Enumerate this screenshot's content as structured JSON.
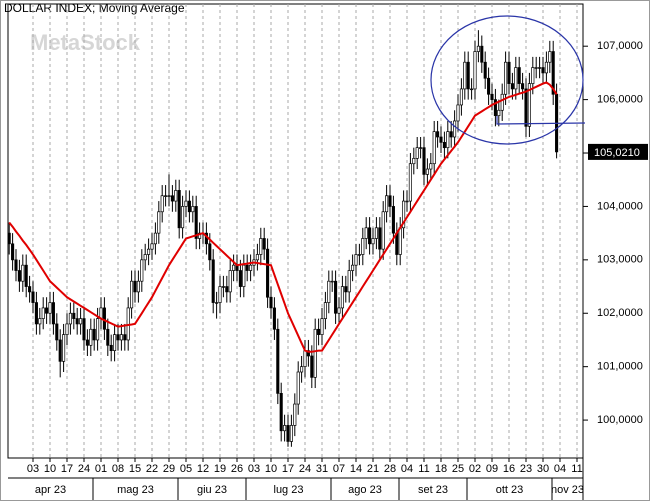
{
  "chart_data": {
    "type": "candlestick",
    "title": "DOLLAR INDEX; Moving Average",
    "watermark": "MetaStock",
    "categories": [
      null,
      null,
      null,
      null,
      null,
      null,
      null,
      "03",
      null,
      null,
      null,
      null,
      "10",
      null,
      null,
      null,
      null,
      "17",
      null,
      null,
      null,
      null,
      "24",
      null,
      null,
      null,
      null,
      "01",
      null,
      null,
      null,
      null,
      "08",
      null,
      null,
      null,
      null,
      "15",
      null,
      null,
      null,
      null,
      "22",
      null,
      null,
      null,
      null,
      "29",
      null,
      null,
      null,
      null,
      "05",
      null,
      null,
      null,
      null,
      "12",
      null,
      null,
      null,
      null,
      "19",
      null,
      null,
      null,
      null,
      "26",
      null,
      null,
      null,
      null,
      "03",
      null,
      null,
      null,
      null,
      "10",
      null,
      null,
      null,
      null,
      "17",
      null,
      null,
      null,
      null,
      "24",
      null,
      null,
      null,
      null,
      "31",
      null,
      null,
      null,
      null,
      "07",
      null,
      null,
      null,
      null,
      "14",
      null,
      null,
      null,
      null,
      "21",
      null,
      null,
      null,
      null,
      "28",
      null,
      null,
      null,
      null,
      "04",
      null,
      null,
      null,
      null,
      "11",
      null,
      null,
      null,
      null,
      "18",
      null,
      null,
      null,
      null,
      "25",
      null,
      null,
      null,
      null,
      "02",
      null,
      null,
      null,
      null,
      "09",
      null,
      null,
      null,
      null,
      "16",
      null,
      null,
      null,
      null,
      "23",
      null,
      null,
      null,
      null,
      "30",
      null,
      null,
      null,
      null,
      "04",
      null,
      null,
      null,
      null,
      "11"
    ],
    "months": [
      "apr 23",
      "mag 23",
      "giu 23",
      "lug 23",
      "ago 23",
      "set 23",
      "ott 23",
      "nov 23"
    ],
    "color": "#000000",
    "open": [
      103.5,
      103.3,
      103.0,
      102.8,
      102.6,
      102.9,
      102.5,
      102.4,
      102.2,
      101.8,
      101.9,
      102.1,
      102.0,
      102.2,
      101.8,
      101.5,
      101.1,
      101.6,
      101.8,
      102.0,
      101.9,
      101.8,
      101.9,
      101.5,
      101.4,
      101.7,
      101.5,
      101.9,
      102.1,
      101.7,
      101.4,
      101.3,
      101.6,
      101.5,
      101.6,
      101.5,
      102.1,
      102.6,
      102.4,
      102.6,
      103.0,
      103.1,
      103.2,
      103.3,
      103.5,
      103.9,
      104.2,
      104.2,
      104.2,
      104.1,
      104.3,
      103.6,
      104.0,
      104.1,
      103.9,
      104.0,
      103.4,
      103.5,
      103.5,
      103.3,
      103.0,
      102.2,
      102.2,
      102.5,
      102.5,
      102.4,
      102.8,
      102.9,
      102.8,
      102.5,
      102.9,
      102.8,
      102.9,
      103.0,
      103.1,
      103.4,
      103.2,
      102.3,
      102.1,
      101.7,
      100.5,
      99.8,
      99.9,
      99.6,
      99.9,
      100.3,
      100.9,
      101.0,
      101.3,
      101.2,
      100.8,
      101.7,
      101.6,
      101.9,
      102.2,
      102.6,
      102.6,
      102.0,
      102.1,
      102.5,
      102.4,
      102.8,
      102.9,
      103.1,
      103.1,
      103.4,
      103.6,
      103.3,
      103.4,
      103.6,
      103.2,
      103.9,
      104.2,
      104.0,
      103.5,
      103.1,
      103.6,
      104.1,
      104.1,
      104.8,
      104.9,
      105.1,
      105.1,
      104.6,
      104.7,
      104.8,
      105.4,
      105.3,
      105.2,
      105.1,
      105.4,
      105.3,
      105.6,
      105.9,
      106.2,
      106.7,
      106.2,
      106.2,
      106.9,
      107.0,
      106.7,
      106.4,
      106.1,
      106.0,
      105.7,
      105.8,
      106.1,
      106.7,
      106.3,
      106.2,
      106.6,
      106.3,
      106.2,
      105.5,
      106.3,
      106.6,
      106.6,
      106.6,
      106.5,
      106.7,
      106.9,
      106.1,
      null,
      null,
      null,
      null,
      null,
      null
    ],
    "high": [
      103.7,
      103.5,
      103.2,
      103.0,
      103.1,
      103.1,
      102.7,
      102.6,
      102.4,
      102.1,
      102.3,
      102.3,
      102.4,
      102.4,
      102.0,
      101.7,
      101.8,
      102.0,
      102.2,
      102.2,
      102.1,
      102.1,
      102.1,
      101.7,
      101.9,
      101.9,
      102.1,
      102.3,
      102.3,
      101.9,
      101.6,
      101.8,
      101.8,
      101.8,
      101.8,
      102.3,
      102.8,
      102.8,
      102.8,
      103.2,
      103.3,
      103.4,
      103.5,
      103.7,
      104.1,
      104.4,
      104.4,
      104.6,
      104.4,
      104.5,
      104.5,
      104.2,
      104.3,
      104.3,
      104.2,
      104.2,
      103.7,
      103.7,
      103.7,
      103.5,
      103.2,
      102.4,
      102.7,
      102.7,
      102.7,
      103.0,
      103.1,
      103.1,
      103.0,
      103.1,
      103.1,
      103.1,
      103.2,
      103.3,
      103.6,
      103.6,
      103.4,
      102.5,
      102.3,
      101.9,
      100.7,
      100.1,
      100.1,
      100.1,
      100.5,
      101.1,
      101.2,
      101.5,
      101.5,
      101.4,
      101.9,
      101.9,
      102.1,
      102.4,
      102.8,
      102.8,
      102.8,
      102.3,
      102.7,
      102.7,
      103.0,
      103.1,
      103.3,
      103.3,
      103.6,
      103.8,
      103.8,
      103.6,
      103.8,
      103.8,
      104.1,
      104.4,
      104.4,
      104.2,
      103.7,
      103.8,
      104.3,
      104.3,
      105.0,
      105.1,
      105.3,
      105.3,
      105.3,
      104.9,
      105.0,
      105.6,
      105.6,
      105.5,
      105.4,
      105.6,
      105.6,
      105.8,
      106.1,
      106.4,
      106.9,
      106.9,
      106.4,
      107.1,
      107.3,
      107.2,
      106.9,
      106.6,
      106.3,
      106.2,
      106.0,
      106.3,
      106.9,
      106.9,
      106.5,
      106.8,
      106.8,
      106.5,
      106.4,
      106.5,
      106.8,
      106.8,
      106.8,
      106.8,
      106.9,
      107.1,
      107.1,
      106.3,
      null,
      null,
      null,
      null,
      null,
      null
    ],
    "low": [
      103.1,
      102.8,
      102.6,
      102.4,
      102.4,
      102.3,
      102.2,
      102.0,
      101.6,
      101.6,
      101.7,
      101.8,
      101.8,
      101.6,
      101.3,
      100.8,
      100.9,
      101.4,
      101.6,
      101.7,
      101.6,
      101.6,
      101.3,
      101.2,
      101.2,
      101.3,
      101.3,
      101.7,
      101.5,
      101.2,
      101.1,
      101.1,
      101.3,
      101.3,
      101.3,
      101.3,
      101.9,
      102.2,
      102.2,
      102.4,
      102.8,
      102.9,
      103.0,
      103.1,
      103.3,
      103.7,
      104.0,
      104.0,
      103.9,
      103.9,
      103.4,
      103.4,
      103.8,
      103.7,
      103.7,
      103.2,
      103.2,
      103.3,
      103.1,
      102.8,
      102.0,
      101.9,
      102.0,
      102.3,
      102.2,
      102.2,
      102.6,
      102.6,
      102.3,
      102.3,
      102.6,
      102.6,
      102.7,
      102.8,
      102.9,
      103.0,
      102.1,
      101.9,
      101.5,
      100.3,
      99.6,
      99.6,
      99.5,
      99.5,
      99.7,
      100.1,
      100.7,
      100.8,
      101.0,
      100.6,
      100.6,
      101.4,
      101.4,
      101.7,
      102.0,
      102.4,
      101.8,
      101.8,
      101.9,
      102.2,
      102.2,
      102.6,
      102.7,
      102.9,
      102.9,
      103.2,
      103.1,
      103.1,
      103.2,
      103.0,
      103.0,
      103.7,
      103.8,
      103.3,
      102.9,
      102.9,
      103.4,
      103.9,
      103.9,
      104.6,
      104.7,
      104.9,
      104.4,
      104.4,
      104.5,
      104.6,
      105.1,
      105.0,
      104.9,
      104.9,
      105.1,
      105.1,
      105.4,
      105.7,
      106.0,
      106.0,
      106.0,
      106.0,
      106.7,
      106.5,
      106.2,
      105.9,
      105.8,
      105.5,
      105.5,
      105.6,
      105.9,
      106.1,
      106.0,
      106.0,
      106.1,
      106.0,
      105.3,
      105.3,
      106.1,
      106.4,
      106.4,
      106.3,
      106.3,
      106.5,
      105.9,
      104.9,
      null,
      null,
      null,
      null,
      null,
      null
    ],
    "close": [
      103.3,
      103.0,
      102.8,
      102.6,
      102.9,
      102.5,
      102.4,
      102.2,
      101.8,
      101.9,
      102.1,
      102.0,
      102.2,
      101.8,
      101.5,
      101.1,
      101.6,
      101.8,
      102.0,
      101.9,
      101.8,
      101.9,
      101.5,
      101.4,
      101.7,
      101.5,
      101.9,
      102.1,
      101.7,
      101.4,
      101.3,
      101.6,
      101.5,
      101.6,
      101.5,
      102.1,
      102.6,
      102.4,
      102.6,
      103.0,
      103.1,
      103.2,
      103.3,
      103.5,
      103.9,
      104.2,
      104.2,
      104.2,
      104.1,
      104.3,
      103.6,
      104.0,
      104.1,
      103.9,
      104.0,
      103.4,
      103.5,
      103.5,
      103.3,
      103.0,
      102.2,
      102.2,
      102.5,
      102.5,
      102.4,
      102.8,
      102.9,
      102.8,
      102.5,
      102.9,
      102.8,
      102.9,
      103.0,
      103.1,
      103.4,
      103.2,
      102.3,
      102.1,
      101.7,
      100.5,
      99.8,
      99.9,
      99.6,
      99.9,
      100.3,
      100.9,
      101.0,
      101.3,
      101.2,
      100.8,
      101.7,
      101.6,
      101.9,
      102.2,
      102.6,
      102.6,
      102.0,
      102.1,
      102.5,
      102.4,
      102.8,
      102.9,
      103.1,
      103.1,
      103.4,
      103.6,
      103.3,
      103.4,
      103.6,
      103.2,
      103.9,
      104.2,
      104.0,
      103.5,
      103.1,
      103.6,
      104.1,
      104.1,
      104.8,
      104.9,
      105.1,
      105.1,
      104.6,
      104.7,
      104.8,
      105.4,
      105.3,
      105.2,
      105.1,
      105.4,
      105.3,
      105.6,
      105.9,
      106.2,
      106.7,
      106.2,
      106.2,
      106.9,
      107.0,
      106.7,
      106.4,
      106.1,
      106.0,
      105.7,
      105.8,
      106.1,
      106.7,
      106.3,
      106.2,
      106.6,
      106.3,
      106.2,
      105.5,
      106.3,
      106.6,
      106.6,
      106.6,
      106.5,
      106.7,
      106.9,
      106.1,
      105.021,
      null,
      null,
      null,
      null,
      null,
      null
    ],
    "moving_average": {
      "color": "#e00000",
      "values": [
        103.7,
        103.62,
        103.53,
        103.45,
        103.36,
        103.28,
        103.19,
        103.1,
        103.0,
        102.9,
        102.8,
        102.7,
        102.6,
        102.54,
        102.48,
        102.42,
        102.36,
        102.3,
        102.26,
        102.22,
        102.18,
        102.14,
        102.1,
        102.06,
        102.02,
        101.98,
        101.94,
        101.9,
        101.87,
        101.84,
        101.81,
        101.78,
        101.75,
        101.76,
        101.77,
        101.78,
        101.79,
        101.8,
        101.9,
        102.0,
        102.1,
        102.2,
        102.3,
        102.42,
        102.54,
        102.66,
        102.78,
        102.9,
        103.0,
        103.1,
        103.2,
        103.3,
        103.4,
        103.42,
        103.44,
        103.46,
        103.48,
        103.5,
        103.44,
        103.38,
        103.32,
        103.26,
        103.2,
        103.14,
        103.08,
        103.02,
        102.96,
        102.9,
        102.91,
        102.92,
        102.93,
        102.94,
        102.95,
        102.94,
        102.93,
        102.92,
        102.91,
        102.9,
        102.72,
        102.54,
        102.36,
        102.18,
        102.0,
        101.86,
        101.72,
        101.58,
        101.44,
        101.3,
        101.28,
        101.28,
        101.29,
        101.3,
        101.3,
        101.4,
        101.5,
        101.6,
        101.7,
        101.8,
        101.9,
        102.0,
        102.1,
        102.2,
        102.3,
        102.4,
        102.5,
        102.6,
        102.7,
        102.8,
        102.9,
        103.0,
        103.1,
        103.2,
        103.3,
        103.4,
        103.5,
        103.6,
        103.7,
        103.8,
        103.9,
        104.0,
        104.1,
        104.2,
        104.3,
        104.4,
        104.5,
        104.6,
        104.7,
        104.8,
        104.88,
        104.96,
        105.04,
        105.12,
        105.2,
        105.3,
        105.4,
        105.5,
        105.6,
        105.7,
        105.74,
        105.78,
        105.82,
        105.86,
        105.9,
        105.93,
        105.96,
        105.99,
        106.02,
        106.05,
        106.07,
        106.09,
        106.11,
        106.13,
        106.15,
        106.18,
        106.21,
        106.24,
        106.27,
        106.3,
        106.32,
        106.28,
        106.2,
        106.1,
        null,
        null,
        null,
        null,
        null,
        null
      ]
    },
    "price_marker": {
      "value": 105.021,
      "label": "105,0210"
    },
    "ylim": [
      99.29,
      107.79
    ],
    "yticks": [
      {
        "value": 100,
        "label": "100,0000"
      },
      {
        "value": 101,
        "label": "101,0000"
      },
      {
        "value": 102,
        "label": "102,0000"
      },
      {
        "value": 103,
        "label": "103,0000"
      },
      {
        "value": 104,
        "label": "104,0000"
      },
      {
        "value": 105,
        "label": "105,0000"
      },
      {
        "value": 106,
        "label": "106,0000"
      },
      {
        "value": 107,
        "label": "107,0000"
      }
    ],
    "grid": true
  }
}
